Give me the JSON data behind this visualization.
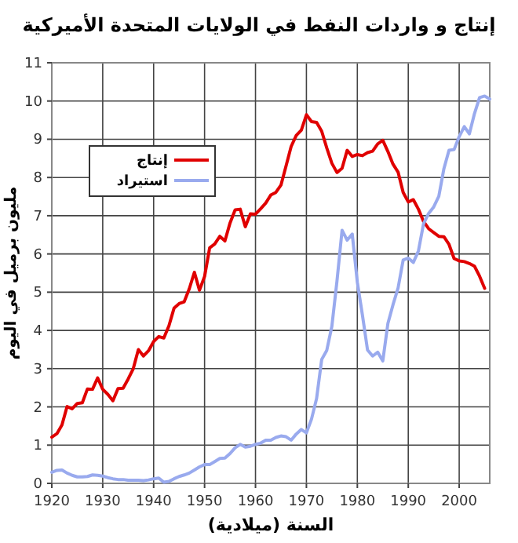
{
  "chart_data": {
    "type": "line",
    "title": "إنتاج و واردات النفط في الولايات المتحدة الأميركية",
    "xlabel": "السنة (ميلادية)",
    "ylabel": "مليون برميل في اليوم",
    "x": [
      1920,
      1921,
      1922,
      1923,
      1924,
      1925,
      1926,
      1927,
      1928,
      1929,
      1930,
      1931,
      1932,
      1933,
      1934,
      1935,
      1936,
      1937,
      1938,
      1939,
      1940,
      1941,
      1942,
      1943,
      1944,
      1945,
      1946,
      1947,
      1948,
      1949,
      1950,
      1951,
      1952,
      1953,
      1954,
      1955,
      1956,
      1957,
      1958,
      1959,
      1960,
      1961,
      1962,
      1963,
      1964,
      1965,
      1966,
      1967,
      1968,
      1969,
      1970,
      1971,
      1972,
      1973,
      1974,
      1975,
      1976,
      1977,
      1978,
      1979,
      1980,
      1981,
      1982,
      1983,
      1984,
      1985,
      1986,
      1987,
      1988,
      1989,
      1990,
      1991,
      1992,
      1993,
      1994,
      1995,
      1996,
      1997,
      1998,
      1999,
      2000,
      2001,
      2002,
      2003,
      2004,
      2005
    ],
    "series": [
      {
        "name": "إنتاج",
        "color": "#e00000",
        "values": [
          1.21,
          1.3,
          1.53,
          2.01,
          1.95,
          2.09,
          2.11,
          2.47,
          2.46,
          2.76,
          2.46,
          2.33,
          2.16,
          2.48,
          2.49,
          2.73,
          3.0,
          3.5,
          3.33,
          3.47,
          3.71,
          3.84,
          3.8,
          4.12,
          4.58,
          4.7,
          4.75,
          5.09,
          5.52,
          5.05,
          5.41,
          6.16,
          6.26,
          6.46,
          6.34,
          6.81,
          7.15,
          7.17,
          6.71,
          7.05,
          7.04,
          7.18,
          7.33,
          7.54,
          7.61,
          7.8,
          8.3,
          8.81,
          9.1,
          9.24,
          9.64,
          9.46,
          9.44,
          9.21,
          8.77,
          8.37,
          8.13,
          8.24,
          8.71,
          8.55,
          8.6,
          8.57,
          8.65,
          8.69,
          8.88,
          8.97,
          8.68,
          8.35,
          8.14,
          7.61,
          7.36,
          7.42,
          7.17,
          6.85,
          6.66,
          6.56,
          6.46,
          6.45,
          6.25,
          5.88,
          5.82,
          5.8,
          5.75,
          5.68,
          5.42,
          5.1
        ]
      },
      {
        "name": "استيراد",
        "color": "#99aaee",
        "x": [
          1920,
          1921,
          1922,
          1923,
          1924,
          1925,
          1926,
          1927,
          1928,
          1929,
          1930,
          1931,
          1932,
          1933,
          1934,
          1935,
          1936,
          1937,
          1938,
          1939,
          1940,
          1941,
          1942,
          1943,
          1944,
          1945,
          1946,
          1947,
          1948,
          1949,
          1950,
          1951,
          1952,
          1953,
          1954,
          1955,
          1956,
          1957,
          1958,
          1959,
          1960,
          1961,
          1962,
          1963,
          1964,
          1965,
          1966,
          1967,
          1968,
          1969,
          1970,
          1971,
          1972,
          1973,
          1974,
          1975,
          1976,
          1977,
          1978,
          1979,
          1980,
          1981,
          1982,
          1983,
          1984,
          1985,
          1986,
          1987,
          1988,
          1989,
          1990,
          1991,
          1992,
          1993,
          1994,
          1995,
          1996,
          1997,
          1998,
          1999,
          2000,
          2001,
          2002,
          2003,
          2004,
          2005,
          2006
        ],
        "values": [
          0.29,
          0.34,
          0.35,
          0.27,
          0.21,
          0.17,
          0.17,
          0.18,
          0.22,
          0.21,
          0.19,
          0.15,
          0.12,
          0.1,
          0.1,
          0.08,
          0.08,
          0.08,
          0.07,
          0.09,
          0.12,
          0.14,
          0.03,
          0.05,
          0.12,
          0.18,
          0.22,
          0.27,
          0.35,
          0.43,
          0.49,
          0.49,
          0.57,
          0.65,
          0.66,
          0.78,
          0.93,
          1.02,
          0.95,
          0.97,
          1.02,
          1.05,
          1.13,
          1.13,
          1.2,
          1.24,
          1.22,
          1.13,
          1.29,
          1.41,
          1.32,
          1.68,
          2.22,
          3.24,
          3.48,
          4.11,
          5.29,
          6.62,
          6.36,
          6.52,
          5.26,
          4.4,
          3.49,
          3.33,
          3.43,
          3.2,
          4.18,
          4.67,
          5.11,
          5.84,
          5.89,
          5.78,
          6.08,
          6.79,
          7.06,
          7.23,
          7.51,
          8.23,
          8.71,
          8.73,
          9.07,
          9.33,
          9.14,
          9.67,
          10.09,
          10.13,
          10.05
        ]
      }
    ],
    "xlim": [
      1920,
      2006
    ],
    "xticks": [
      1920,
      1930,
      1940,
      1950,
      1960,
      1970,
      1980,
      1990,
      2000
    ],
    "ylim": [
      0,
      11
    ],
    "yticks": [
      0,
      1,
      2,
      3,
      4,
      5,
      6,
      7,
      8,
      9,
      10,
      11
    ],
    "grid": true,
    "legend": "top left",
    "marker": "none",
    "line_style": "solid"
  }
}
